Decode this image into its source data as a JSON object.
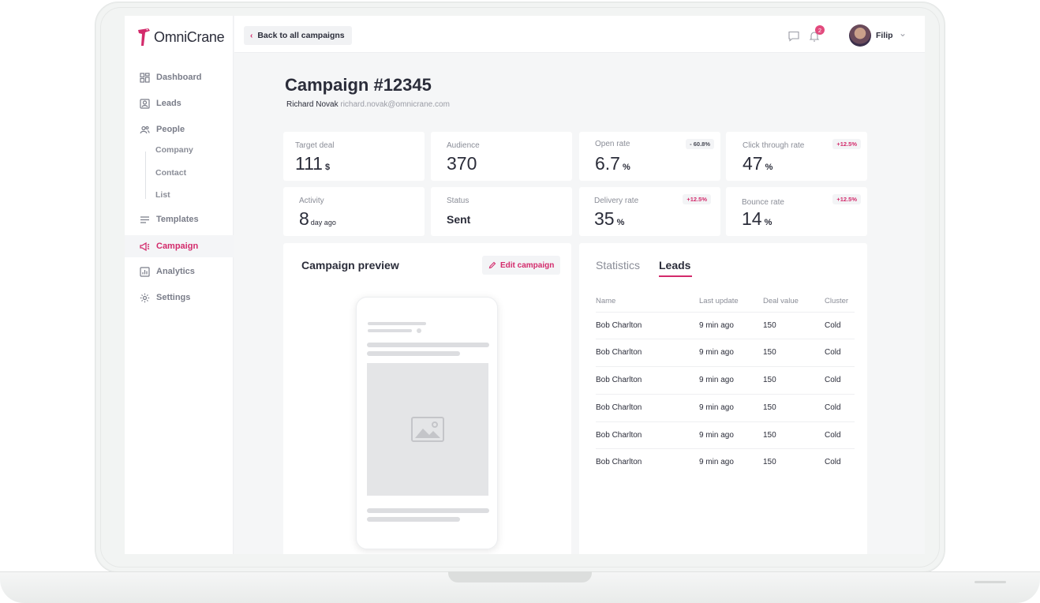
{
  "brand": {
    "name": "OmniCrane",
    "accent": "#d32a6b"
  },
  "sidebar": {
    "items": [
      {
        "label": "Dashboard",
        "icon": "dashboard-icon"
      },
      {
        "label": "Leads",
        "icon": "leads-icon"
      },
      {
        "label": "People",
        "icon": "people-icon"
      },
      {
        "label": "Templates",
        "icon": "templates-icon"
      },
      {
        "label": "Campaign",
        "icon": "megaphone-icon",
        "active": true
      },
      {
        "label": "Analytics",
        "icon": "analytics-icon"
      },
      {
        "label": "Settings",
        "icon": "gear-icon"
      }
    ],
    "people_subitems": [
      {
        "label": "Company"
      },
      {
        "label": "Contact"
      },
      {
        "label": "List"
      }
    ]
  },
  "topbar": {
    "back_label": "Back to all campaigns",
    "notification_count": "2",
    "user_name": "Filip"
  },
  "campaign": {
    "title": "Campaign #12345",
    "owner_name": "Richard Novak",
    "owner_email": "richard.novak@omnicrane.com"
  },
  "stats": {
    "target_deal": {
      "label": "Target deal",
      "value": "111",
      "unit": "$"
    },
    "audience": {
      "label": "Audience",
      "value": "370"
    },
    "open_rate": {
      "label": "Open rate",
      "value": "6.7",
      "unit": "%",
      "delta": "- 60.8%"
    },
    "click_through_rate": {
      "label": "Click through rate",
      "value": "47",
      "unit": "%",
      "delta": "+12.5%"
    },
    "activity": {
      "label": "Activity",
      "value": "8",
      "unit": "day ago"
    },
    "status": {
      "label": "Status",
      "value": "Sent"
    },
    "delivery_rate": {
      "label": "Delivery rate",
      "value": "35",
      "unit": "%",
      "delta": "+12.5%"
    },
    "bounce_rate": {
      "label": "Bounce rate",
      "value": "14",
      "unit": "%",
      "delta": "+12.5%"
    }
  },
  "preview": {
    "title": "Campaign preview",
    "edit_label": "Edit campaign"
  },
  "leads_panel": {
    "tabs": [
      {
        "label": "Statistics"
      },
      {
        "label": "Leads",
        "active": true
      }
    ],
    "columns": [
      "Name",
      "Last update",
      "Deal value",
      "Cluster"
    ],
    "rows": [
      [
        "Bob Charlton",
        "9 min ago",
        "150",
        "Cold"
      ],
      [
        "Bob Charlton",
        "9 min ago",
        "150",
        "Cold"
      ],
      [
        "Bob Charlton",
        "9 min ago",
        "150",
        "Cold"
      ],
      [
        "Bob Charlton",
        "9 min ago",
        "150",
        "Cold"
      ],
      [
        "Bob Charlton",
        "9 min ago",
        "150",
        "Cold"
      ],
      [
        "Bob Charlton",
        "9 min ago",
        "150",
        "Cold"
      ]
    ]
  }
}
